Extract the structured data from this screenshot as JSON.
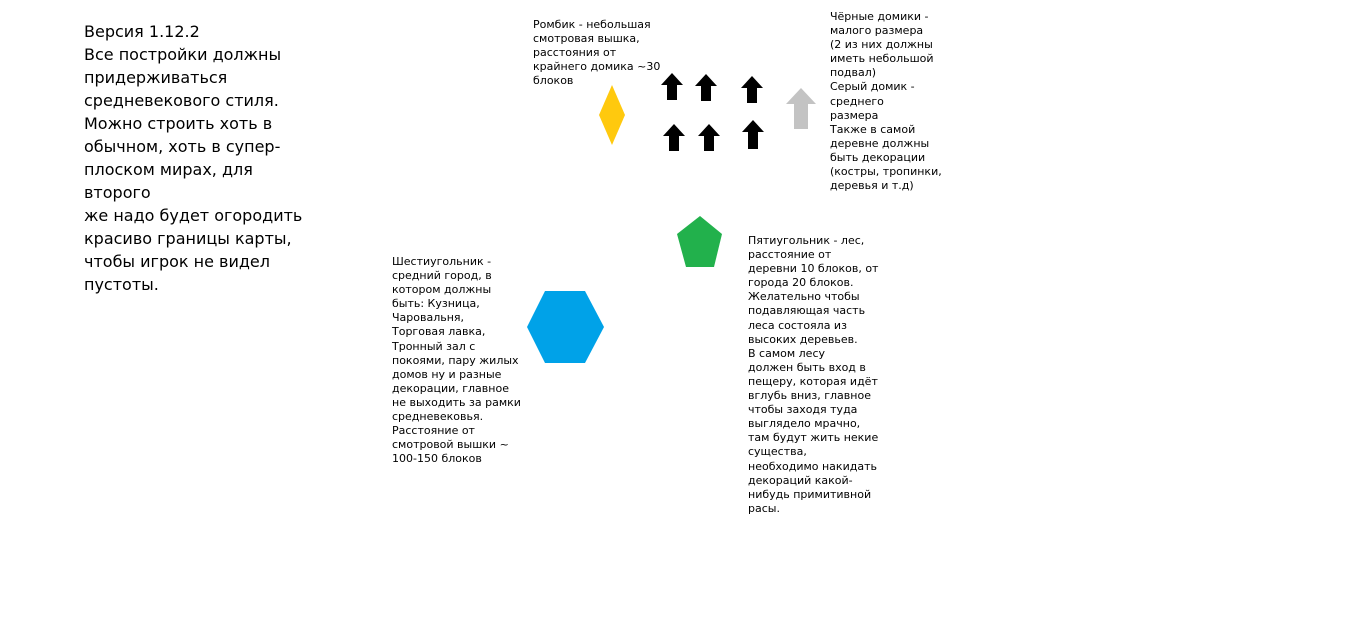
{
  "intro": {
    "text": "Версия 1.12.2\nВсе постройки должны\nпридерживаться\nсредневекового стиля.\nМожно строить хоть в\nобычном, хоть в супер-\nплоском мирах, для второго\nже надо будет огородить\nкрасиво границы карты,\nчтобы игрок не видел\nпустоты."
  },
  "notes": {
    "rhombus": "Ромбик - небольшая\nсмотровая вышка,\nрасстояния от\nкрайнего домика ~30\nблоков",
    "houses": "Чёрные домики -\nмалого размера\n(2 из них должны\nиметь небольшой\nподвал)\nСерый домик -\nсреднего\nразмера\nТакже в самой\nдеревне должны\nбыть декорации\n(костры, тропинки,\nдеревья и т.д)",
    "pentagon": "Пятиугольник - лес,\nрасстояние от\nдеревни 10 блоков, от\nгорода 20 блоков.\nЖелательно чтобы\nподавляющая часть\nлеса состояла из\nвысоких деревьев.\nВ самом лесу\nдолжен быть вход в\nпещеру, которая идёт\nвглубь вниз, главное\nчтобы заходя туда\nвыглядело мрачно,\nтам будут жить некие\nсущества,\nнеобходимо накидать\nдекораций какой-\nнибудь примитивной\nрасы.",
    "hexagon": "Шестиугольник -\nсредний город, в\nкотором должны\nбыть: Кузница,\nЧаровальня,\nТорговая лавка,\nТронный зал с\nпокоями, пару жилых\nдомов ну и разные\nдекорации, главное\nне выходить за рамки\nсредневековья.\nРасстояние от\nсмотровой вышки ~\n100-150 блоков"
  },
  "colors": {
    "rhombus": "#ffc90e",
    "small_house": "#000000",
    "medium_house": "#c3c3c3",
    "pentagon": "#22b14c",
    "hexagon": "#00a2e8"
  }
}
